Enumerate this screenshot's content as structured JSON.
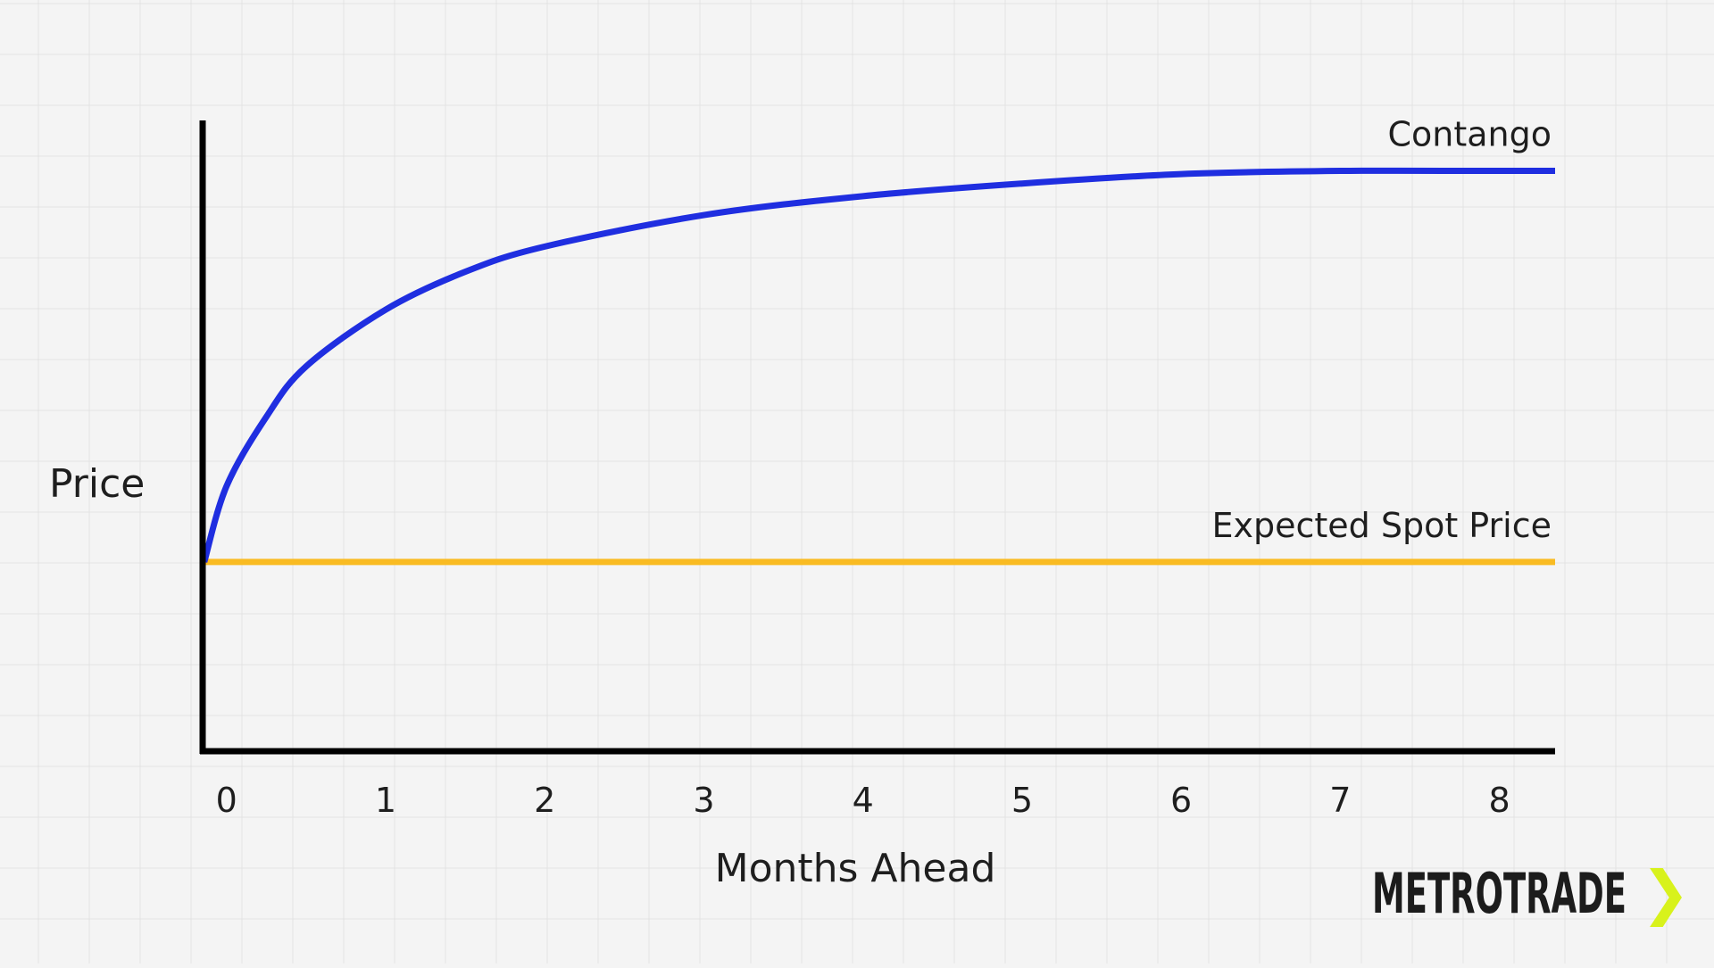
{
  "chart_data": {
    "type": "line",
    "title": "",
    "xlabel": "Months Ahead",
    "ylabel": "Price",
    "x_ticks": [
      "0",
      "1",
      "2",
      "3",
      "4",
      "5",
      "6",
      "7",
      "8"
    ],
    "xlim": [
      -0.15,
      8.35
    ],
    "ylim": [
      0,
      1
    ],
    "grid": true,
    "series": [
      {
        "name": "Contango",
        "color": "#1f2ee0",
        "points": [
          [
            -0.14,
            0.3
          ],
          [
            0.0,
            0.42
          ],
          [
            0.25,
            0.53
          ],
          [
            0.5,
            0.61
          ],
          [
            1.0,
            0.7
          ],
          [
            1.5,
            0.76
          ],
          [
            2.0,
            0.8
          ],
          [
            3.0,
            0.85
          ],
          [
            4.0,
            0.88
          ],
          [
            5.0,
            0.9
          ],
          [
            6.0,
            0.915
          ],
          [
            7.0,
            0.92
          ],
          [
            8.0,
            0.92
          ],
          [
            8.35,
            0.92
          ]
        ]
      },
      {
        "name": "Expected Spot Price",
        "color": "#f9bb22",
        "points": [
          [
            -0.14,
            0.3
          ],
          [
            8.35,
            0.3
          ]
        ]
      }
    ]
  },
  "branding": {
    "logo_text": "METROTRADE",
    "logo_glyph": "❯",
    "accent_color": "#d8f21c"
  }
}
